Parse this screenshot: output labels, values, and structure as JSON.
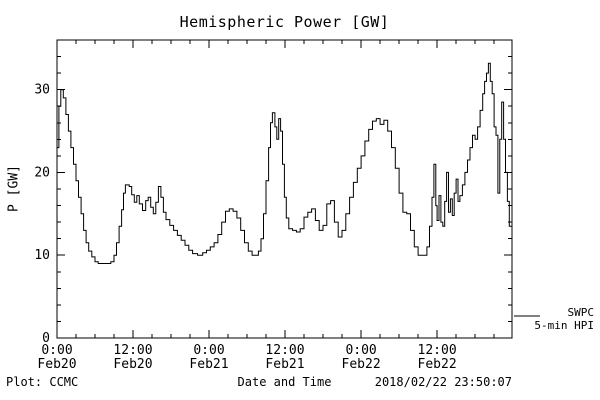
{
  "title": "Hemispheric Power [GW]",
  "footer": {
    "left": "Plot: CCMC",
    "right": "2018/02/22 23:50:07"
  },
  "legend": {
    "line1": "SWPC",
    "line2": "5-min HPI"
  },
  "colors": {
    "background": "#ffffff",
    "axis": "#000000",
    "line": "#000000"
  },
  "chart_data": {
    "type": "line",
    "line_style": "steps-post",
    "title": "Hemispheric Power [GW]",
    "xlabel": "Date and Time",
    "ylabel": "P [GW]",
    "legend_entries": [
      "SWPC",
      "5-min HPI"
    ],
    "legend_position": "right-outside",
    "grid": false,
    "x_encoding_note": "hours since first x tick (Feb20 0:00)",
    "xlim": [
      0,
      71.83
    ],
    "ylim": [
      0,
      36
    ],
    "yticks": [
      0,
      10,
      20,
      30
    ],
    "y_minor_step": 2,
    "x_minor_step": 3,
    "xticks": [
      {
        "t": 0,
        "time": "0:00",
        "date": "Feb20"
      },
      {
        "t": 12,
        "time": "12:00",
        "date": "Feb20"
      },
      {
        "t": 24,
        "time": "0:00",
        "date": "Feb21"
      },
      {
        "t": 36,
        "time": "12:00",
        "date": "Feb21"
      },
      {
        "t": 48,
        "time": "0:00",
        "date": "Feb22"
      },
      {
        "t": 60,
        "time": "12:00",
        "date": "Feb22"
      }
    ],
    "series": [
      {
        "name": "SWPC 5-min HPI",
        "color": "#000000",
        "x": [
          0,
          0.3,
          0.6,
          1.0,
          1.4,
          1.8,
          2.2,
          2.6,
          3.0,
          3.4,
          3.8,
          4.2,
          4.6,
          5.0,
          5.5,
          6.0,
          6.5,
          7.5,
          8.5,
          9.0,
          9.4,
          9.8,
          10.2,
          10.5,
          10.8,
          11.4,
          11.8,
          12.2,
          12.6,
          13.0,
          13.5,
          14.0,
          14.4,
          14.8,
          15.2,
          15.6,
          16.0,
          16.4,
          16.8,
          17.2,
          17.8,
          18.4,
          19.0,
          19.6,
          20.2,
          20.8,
          21.4,
          22.2,
          23.0,
          23.6,
          24.2,
          24.8,
          25.4,
          26.0,
          26.6,
          27.2,
          27.8,
          28.4,
          29.0,
          29.6,
          30.2,
          30.8,
          31.4,
          31.8,
          32.2,
          32.6,
          33.0,
          33.4,
          33.7,
          34.0,
          34.4,
          34.7,
          35.0,
          35.3,
          35.6,
          35.9,
          36.2,
          36.6,
          37.2,
          37.8,
          38.4,
          39.0,
          39.6,
          40.2,
          40.8,
          41.4,
          42.0,
          42.6,
          43.2,
          43.8,
          44.4,
          45.0,
          45.6,
          46.2,
          46.8,
          47.4,
          48.0,
          48.6,
          49.2,
          49.8,
          50.4,
          51.0,
          51.6,
          52.2,
          52.8,
          53.4,
          54.0,
          54.6,
          55.2,
          55.8,
          56.4,
          57.0,
          57.8,
          58.4,
          58.8,
          59.2,
          59.5,
          59.8,
          60.0,
          60.3,
          60.6,
          60.9,
          61.2,
          61.5,
          61.8,
          62.1,
          62.4,
          62.7,
          63.0,
          63.3,
          63.6,
          64.0,
          64.4,
          64.8,
          65.2,
          65.6,
          66.0,
          66.4,
          66.8,
          67.2,
          67.5,
          67.8,
          68.1,
          68.4,
          68.7,
          69.0,
          69.3,
          69.6,
          69.9,
          70.2,
          70.5,
          70.8,
          71.1,
          71.4,
          71.83
        ],
        "y": [
          23,
          28,
          30,
          29,
          27,
          25,
          23,
          21,
          19,
          17,
          15,
          13,
          11.5,
          10.5,
          9.8,
          9.2,
          9,
          9,
          9.2,
          10,
          11.5,
          13.5,
          15.5,
          17.5,
          18.5,
          18.3,
          17.3,
          16.4,
          17.2,
          16.2,
          15.4,
          16.6,
          17,
          15.8,
          15,
          16.4,
          18.3,
          17,
          15.2,
          14.3,
          13.6,
          13,
          12.4,
          11.8,
          11.2,
          10.6,
          10.2,
          10,
          10.3,
          10.6,
          11,
          11.5,
          12.5,
          14,
          15.3,
          15.6,
          15.3,
          14.5,
          13,
          11.5,
          10.5,
          10,
          10,
          10.5,
          12,
          15,
          19,
          23,
          26,
          27.2,
          25.5,
          24,
          26.5,
          25,
          21,
          17,
          14.5,
          13.2,
          13,
          12.8,
          13.2,
          14.6,
          15.2,
          15.6,
          14.2,
          13,
          13.6,
          16.2,
          16.6,
          14,
          12.2,
          13,
          15,
          17,
          18.8,
          20.5,
          22,
          23.8,
          25.2,
          26.2,
          26.5,
          25.8,
          26.3,
          25,
          23,
          20.5,
          17.5,
          15.2,
          15,
          13,
          11,
          10,
          10,
          11,
          13.5,
          17,
          21,
          16,
          14.2,
          17.2,
          14,
          13.5,
          16.5,
          20,
          15.2,
          16.8,
          14.8,
          17.5,
          19.2,
          16.5,
          17.2,
          18.5,
          20,
          21.5,
          23,
          24.5,
          24,
          25.5,
          27.5,
          29.5,
          31,
          32,
          33.2,
          31,
          29.5,
          25.5,
          24.5,
          17.5,
          24,
          28.5,
          24,
          20,
          16.5,
          13.5,
          13.8
        ]
      }
    ]
  }
}
